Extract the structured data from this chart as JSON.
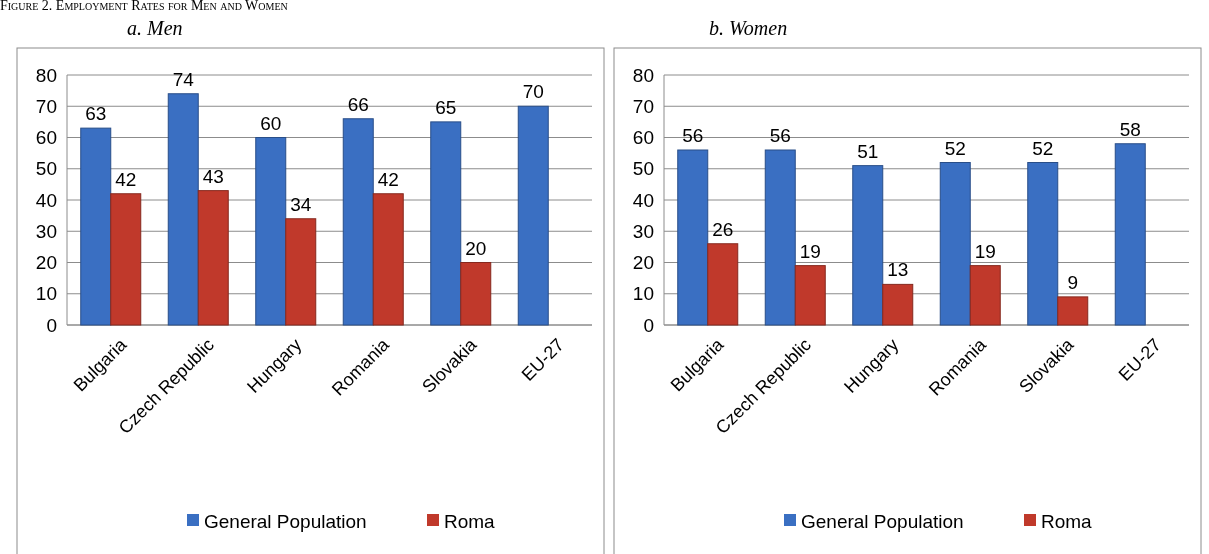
{
  "chart_data": [
    {
      "type": "bar",
      "title": "a. Men",
      "annotations": [
        "Figure 2. Employment Rates for Men and Women"
      ],
      "categories": [
        "Bulgaria",
        "Czech Republic",
        "Hungary",
        "Romania",
        "Slovakia",
        "EU-27"
      ],
      "series": [
        {
          "name": "General Population",
          "color": "#3a6fc2",
          "values": [
            63,
            74,
            60,
            66,
            65,
            70
          ]
        },
        {
          "name": "Roma",
          "color": "#c0392b",
          "values": [
            42,
            43,
            34,
            42,
            20,
            null
          ]
        }
      ],
      "ylim": [
        0,
        80
      ],
      "yticks": [
        0,
        10,
        20,
        30,
        40,
        50,
        60,
        70,
        80
      ],
      "grid": "y",
      "legend": "bottom",
      "data_labels": true
    },
    {
      "type": "bar",
      "title": "b. Women",
      "categories": [
        "Bulgaria",
        "Czech Republic",
        "Hungary",
        "Romania",
        "Slovakia",
        "EU-27"
      ],
      "series": [
        {
          "name": "General Population",
          "color": "#3a6fc2",
          "values": [
            56,
            56,
            51,
            52,
            52,
            58
          ]
        },
        {
          "name": "Roma",
          "color": "#c0392b",
          "values": [
            26,
            19,
            13,
            19,
            9,
            null
          ]
        }
      ],
      "ylim": [
        0,
        80
      ],
      "yticks": [
        0,
        10,
        20,
        30,
        40,
        50,
        60,
        70,
        80
      ],
      "grid": "y",
      "legend": "bottom",
      "data_labels": true
    }
  ]
}
